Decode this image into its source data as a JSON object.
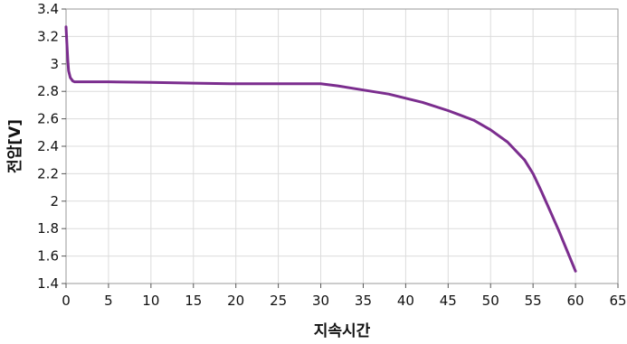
{
  "chart_data": {
    "type": "line",
    "title": "",
    "xlabel": "지속시간",
    "ylabel": "전압[V]",
    "xlim": [
      0,
      65
    ],
    "ylim": [
      1.4,
      3.4
    ],
    "x_ticks": [
      0,
      5,
      10,
      15,
      20,
      25,
      30,
      35,
      40,
      45,
      50,
      55,
      60,
      65
    ],
    "y_ticks": [
      1.4,
      1.6,
      1.8,
      2,
      2.2,
      2.4,
      2.6,
      2.8,
      3,
      3.2,
      3.4
    ],
    "x_tick_labels": [
      "0",
      "5",
      "10",
      "15",
      "20",
      "25",
      "30",
      "35",
      "40",
      "45",
      "50",
      "55",
      "60",
      "65"
    ],
    "y_tick_labels": [
      "1.4",
      "1.6",
      "1.8",
      "2",
      "2.2",
      "2.4",
      "2.6",
      "2.8",
      "3",
      "3.2",
      "3.4"
    ],
    "grid": true,
    "legend": "none",
    "series": [
      {
        "color": "#7b2d8e",
        "x": [
          0,
          0.1,
          0.2,
          0.3,
          0.5,
          0.8,
          1,
          5,
          10,
          15,
          20,
          25,
          28,
          30,
          32,
          35,
          38,
          40,
          42,
          45,
          48,
          50,
          52,
          54,
          55,
          56,
          57,
          58,
          59,
          60
        ],
        "y": [
          3.27,
          3.15,
          3.03,
          2.95,
          2.9,
          2.875,
          2.87,
          2.87,
          2.865,
          2.86,
          2.855,
          2.855,
          2.855,
          2.855,
          2.84,
          2.81,
          2.78,
          2.75,
          2.72,
          2.66,
          2.59,
          2.52,
          2.43,
          2.3,
          2.2,
          2.07,
          1.93,
          1.79,
          1.64,
          1.49
        ]
      }
    ]
  }
}
